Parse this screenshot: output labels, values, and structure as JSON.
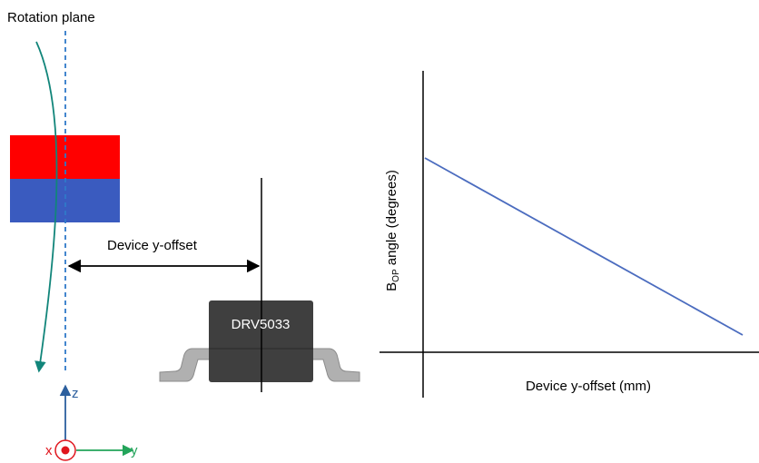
{
  "diagram": {
    "rotation_label": "Rotation plane",
    "offset_label": "Device y-offset",
    "chip_label": "DRV5033"
  },
  "axes_indicator": {
    "z_label": "z",
    "x_label": "x",
    "y_label": "y"
  },
  "chart_data": {
    "type": "line",
    "xlabel": "Device y-offset (mm)",
    "ylabel_main": "B",
    "ylabel_sub": "OP",
    "ylabel_rest": " angle (degrees)",
    "series": [
      {
        "x": [
          0,
          1
        ],
        "values": [
          1,
          0
        ]
      }
    ],
    "note": "qualitative trend; axes are unscaled"
  },
  "colors": {
    "magnet_north": "#ff0000",
    "magnet_south": "#3a5bbf",
    "rotation_arrow": "#11857a",
    "axis_line": "#2f79c9",
    "trend_line": "#4b6cbf",
    "chip_body": "#3f3f3f",
    "lead": "#b0b0b0",
    "z_axis": "#2c5f9e",
    "y_axis": "#23a45a",
    "x_axis": "#e0161e"
  }
}
